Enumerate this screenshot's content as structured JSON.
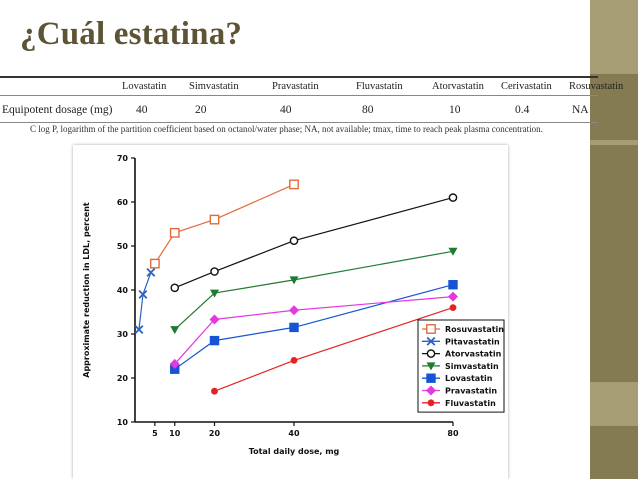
{
  "slide": {
    "title": "¿Cuál estatina?",
    "colors": {
      "bar_dark": "#857b52",
      "bar_light": "#a79d74",
      "title": "#5c5434"
    }
  },
  "table": {
    "drugs": [
      "Lovastatin",
      "Simvastatin",
      "Pravastatin",
      "Fluvastatin",
      "Atorvastatin",
      "Cerivastatin",
      "Rosuvastatin"
    ],
    "row_label": "Equipotent dosage (mg)",
    "doses": [
      "40",
      "20",
      "40",
      "80",
      "10",
      "0.4",
      "NA"
    ],
    "footnote": "C log P, logarithm of the partition coefficient based on octanol/water phase; NA, not available; tmax, time to reach peak plasma concentration."
  },
  "chart_data": {
    "type": "line",
    "xlabel": "Total daily dose, mg",
    "ylabel": "Approximate reduction in LDL, percent",
    "xlim": [
      0,
      80
    ],
    "ylim": [
      10,
      70
    ],
    "x_ticks": [
      "5",
      "10",
      "20",
      "40",
      "80"
    ],
    "y_ticks": [
      "10",
      "20",
      "30",
      "40",
      "50",
      "60",
      "70"
    ],
    "legend_position": "bottom-right",
    "series": [
      {
        "name": "Rosuvastatin",
        "color": "#e06c3c",
        "marker": "square-open",
        "points": [
          [
            5,
            46
          ],
          [
            10,
            53
          ],
          [
            20,
            56
          ],
          [
            40,
            64
          ]
        ]
      },
      {
        "name": "Pitavastatin",
        "color": "#2a62c4",
        "marker": "x",
        "points": [
          [
            1,
            31
          ],
          [
            2,
            39
          ],
          [
            4,
            44
          ]
        ]
      },
      {
        "name": "Atorvastatin",
        "color": "#111111",
        "marker": "circle-open",
        "points": [
          [
            10,
            40.5
          ],
          [
            20,
            44.2
          ],
          [
            40,
            51.2
          ],
          [
            80,
            61
          ]
        ]
      },
      {
        "name": "Simvastatin",
        "color": "#1f7a33",
        "marker": "triangle-down",
        "points": [
          [
            10,
            31
          ],
          [
            20,
            39.3
          ],
          [
            40,
            42.3
          ],
          [
            80,
            48.8
          ]
        ]
      },
      {
        "name": "Lovastatin",
        "color": "#1554d4",
        "marker": "square",
        "points": [
          [
            10,
            22
          ],
          [
            20,
            28.5
          ],
          [
            40,
            31.5
          ],
          [
            80,
            41.2
          ]
        ]
      },
      {
        "name": "Pravastatin",
        "color": "#e23ae0",
        "marker": "diamond",
        "points": [
          [
            10,
            23.2
          ],
          [
            20,
            33.3
          ],
          [
            40,
            35.4
          ],
          [
            80,
            38.5
          ]
        ]
      },
      {
        "name": "Fluvastatin",
        "color": "#e52222",
        "marker": "circle",
        "points": [
          [
            20,
            17
          ],
          [
            40,
            24
          ],
          [
            80,
            36
          ]
        ]
      }
    ]
  }
}
